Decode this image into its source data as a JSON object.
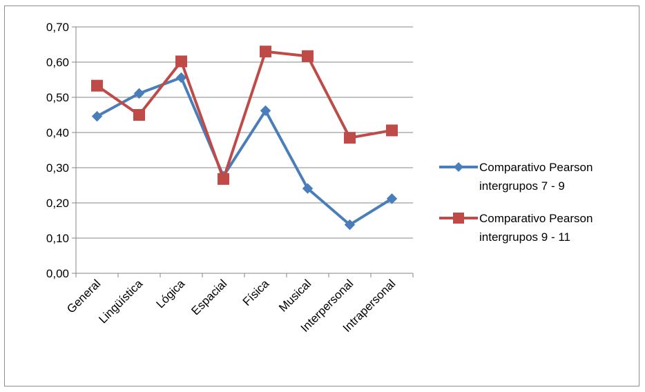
{
  "chart_data": {
    "type": "line",
    "categories": [
      "General",
      "Lingüística",
      "Lógica",
      "Espacial",
      "Física",
      "Musical",
      "Interpersonal",
      "Intrapersonal"
    ],
    "y_ticks": [
      "0,00",
      "0,10",
      "0,20",
      "0,30",
      "0,40",
      "0,50",
      "0,60",
      "0,70"
    ],
    "ylim": [
      0,
      0.7
    ],
    "grid": true,
    "legend_position": "right",
    "series": [
      {
        "name_lines": [
          "Comparativo Pearson",
          "intergrupos 7 - 9"
        ],
        "values": [
          0.446,
          0.511,
          0.556,
          0.276,
          0.462,
          0.241,
          0.138,
          0.212
        ],
        "color": "#4a7ebb",
        "marker": "diamond"
      },
      {
        "name_lines": [
          "Comparativo Pearson",
          "intergrupos 9 - 11"
        ],
        "values": [
          0.533,
          0.45,
          0.602,
          0.268,
          0.63,
          0.617,
          0.385,
          0.406
        ],
        "color": "#be4b48",
        "marker": "square"
      }
    ]
  }
}
